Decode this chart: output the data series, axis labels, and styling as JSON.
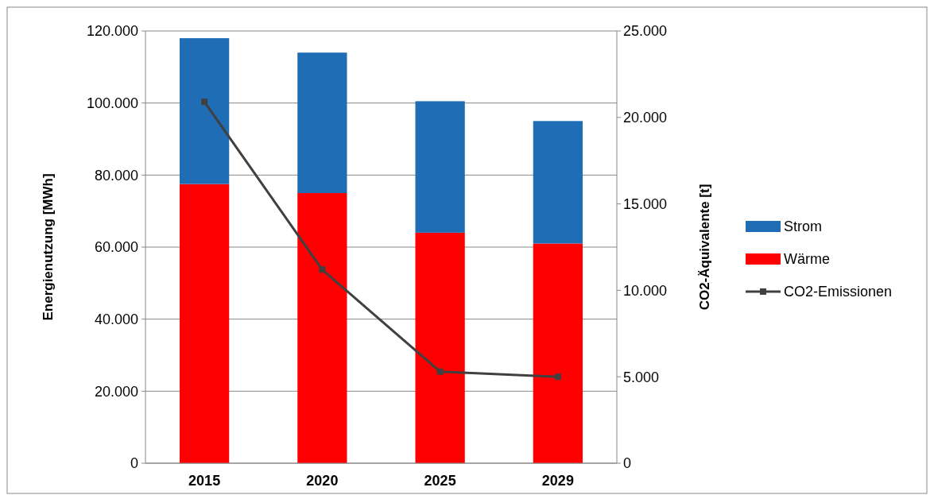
{
  "chart_data": {
    "type": "bar",
    "stacked": true,
    "categories": [
      "2015",
      "2020",
      "2025",
      "2029"
    ],
    "series": [
      {
        "name": "Wärme",
        "color": "#ff0000",
        "values": [
          77500,
          75000,
          64000,
          61000
        ]
      },
      {
        "name": "Strom",
        "color": "#1f6db5",
        "values": [
          40500,
          39000,
          36500,
          34000
        ]
      },
      {
        "name": "CO2-Emissionen",
        "type": "line",
        "axis": "y2",
        "color": "#404040",
        "marker": "square",
        "values": [
          20900,
          11200,
          5300,
          5000
        ]
      }
    ],
    "ylabel": "Energienutzung [MWh]",
    "y2label": "CO2-Äquivalente [t]",
    "ylim": [
      0,
      120000
    ],
    "yticks": [
      {
        "value": 0,
        "label": "0"
      },
      {
        "value": 20000,
        "label": "20.000"
      },
      {
        "value": 40000,
        "label": "40.000"
      },
      {
        "value": 60000,
        "label": "60.000"
      },
      {
        "value": 80000,
        "label": "80.000"
      },
      {
        "value": 100000,
        "label": "100.000"
      },
      {
        "value": 120000,
        "label": "120.000"
      }
    ],
    "y2lim": [
      0,
      25000
    ],
    "y2ticks": [
      {
        "value": 0,
        "label": "0"
      },
      {
        "value": 5000,
        "label": "5.000"
      },
      {
        "value": 10000,
        "label": "10.000"
      },
      {
        "value": 15000,
        "label": "15.000"
      },
      {
        "value": 20000,
        "label": "20.000"
      },
      {
        "value": 25000,
        "label": "25.000"
      }
    ],
    "grid": "y",
    "legend": "right"
  }
}
